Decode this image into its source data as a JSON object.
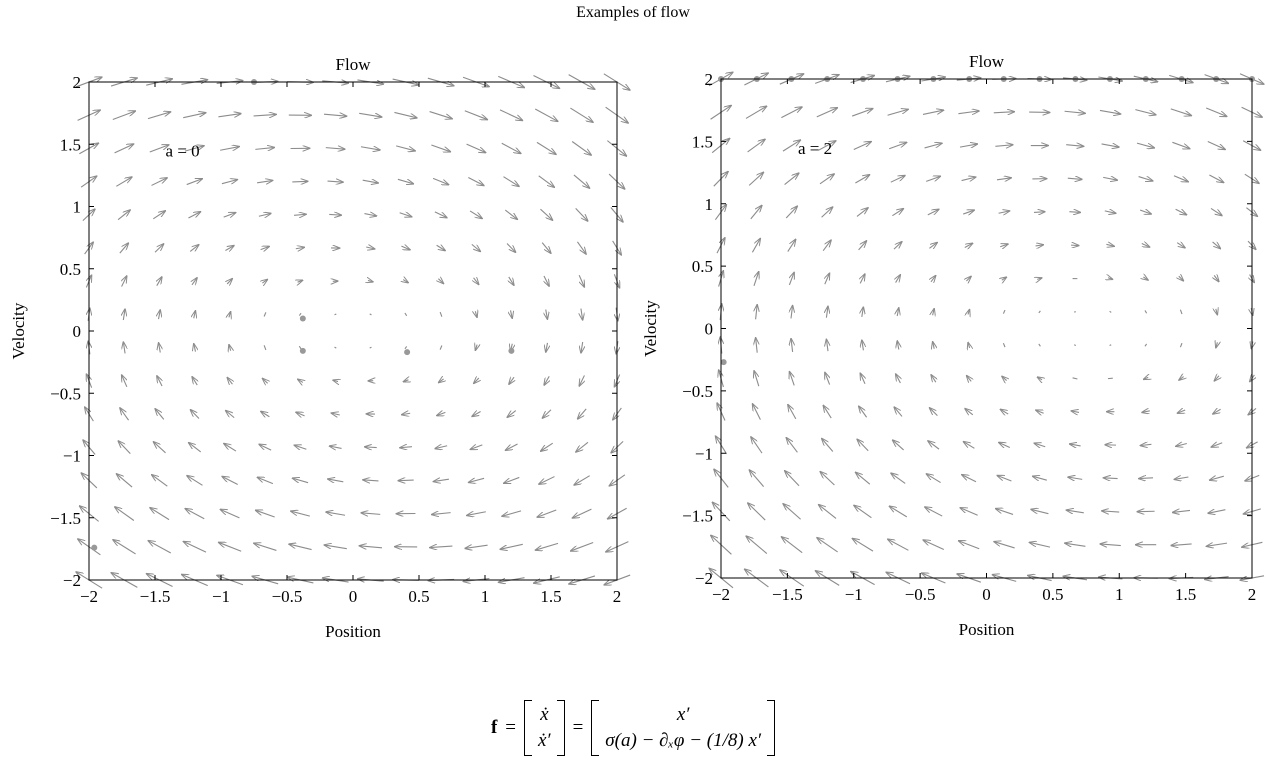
{
  "figure": {
    "suptitle": "Examples of flow",
    "equation": {
      "lhs": "f",
      "state": [
        "ẋ",
        "ẋ′"
      ],
      "rhs": [
        "x′",
        "σ(a) − ∂ₓφ − (1/8) x′"
      ]
    }
  },
  "chart_data": [
    {
      "type": "quiver",
      "title": "Flow",
      "xlabel": "Position",
      "ylabel": "Velocity",
      "xlim": [
        -2,
        2
      ],
      "ylim": [
        -2,
        2
      ],
      "xticks": [
        -2,
        -1.5,
        -1,
        -0.5,
        0,
        0.5,
        1,
        1.5,
        2
      ],
      "yticks": [
        -2,
        -1.5,
        -1,
        -0.5,
        0,
        0.5,
        1,
        1.5,
        2
      ],
      "annotation": "a = 0",
      "a": 0,
      "field": {
        "dx": "x′",
        "dv": "σ(a) − ∂ₓφ − (1/8) x′"
      },
      "grid_points": 16,
      "arrow_color": "#8c8c8c",
      "fixed_points": [
        [
          -0.38,
          0.1
        ],
        [
          -0.38,
          -0.16
        ],
        [
          0.41,
          -0.17
        ],
        [
          1.2,
          -0.16
        ],
        [
          -0.75,
          2.0
        ],
        [
          -1.96,
          -1.74
        ]
      ]
    },
    {
      "type": "quiver",
      "title": "Flow",
      "xlabel": "Position",
      "ylabel": "Velocity",
      "xlim": [
        -2,
        2
      ],
      "ylim": [
        -2,
        2
      ],
      "xticks": [
        -2,
        -1.5,
        -1,
        -0.5,
        0,
        0.5,
        1,
        1.5,
        2
      ],
      "yticks": [
        -2,
        -1.5,
        -1,
        -0.5,
        0,
        0.5,
        1,
        1.5,
        2
      ],
      "annotation": "a = 2",
      "a": 2,
      "field": {
        "dx": "x′",
        "dv": "σ(a) − ∂ₓφ − (1/8) x′"
      },
      "grid_points": 16,
      "arrow_color": "#8c8c8c",
      "fixed_points": [
        [
          -2,
          2
        ],
        [
          -1.73,
          2
        ],
        [
          -1.47,
          2
        ],
        [
          -1.2,
          2
        ],
        [
          -0.93,
          2
        ],
        [
          -0.67,
          2
        ],
        [
          -0.4,
          2
        ],
        [
          -0.13,
          2
        ],
        [
          0.13,
          2
        ],
        [
          0.4,
          2
        ],
        [
          0.67,
          2
        ],
        [
          0.93,
          2
        ],
        [
          1.2,
          2
        ],
        [
          1.47,
          2
        ],
        [
          1.73,
          2
        ],
        [
          2,
          2
        ],
        [
          -1.98,
          -0.27
        ]
      ]
    }
  ]
}
